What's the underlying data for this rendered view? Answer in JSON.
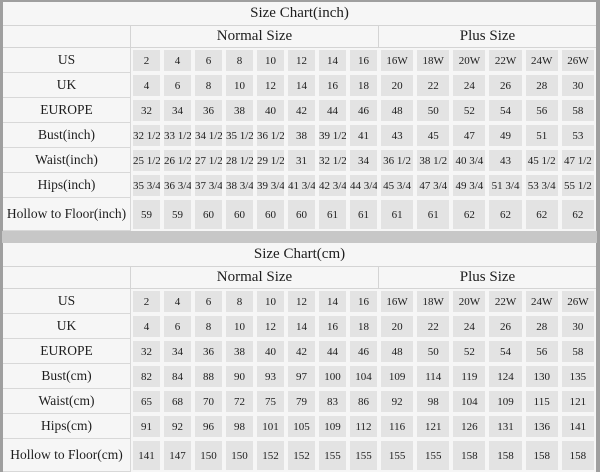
{
  "colors": {
    "page_bg": "#9f9f9f",
    "gap_bg": "#c7c7c7",
    "table_bg": "#f6f6f6",
    "cell_bg": "#e3e3e3",
    "text": "#1d1d1d"
  },
  "chart_data": [
    {
      "type": "table",
      "title": "Size Chart(inch)",
      "column_groups": [
        {
          "label": "Normal Size",
          "span": 8
        },
        {
          "label": "Plus Size",
          "span": 6
        }
      ],
      "rows": [
        {
          "label": "US",
          "normal": [
            "2",
            "4",
            "6",
            "8",
            "10",
            "12",
            "14",
            "16"
          ],
          "plus": [
            "16W",
            "18W",
            "20W",
            "22W",
            "24W",
            "26W"
          ]
        },
        {
          "label": "UK",
          "normal": [
            "4",
            "6",
            "8",
            "10",
            "12",
            "14",
            "16",
            "18"
          ],
          "plus": [
            "20",
            "22",
            "24",
            "26",
            "28",
            "30"
          ]
        },
        {
          "label": "EUROPE",
          "normal": [
            "32",
            "34",
            "36",
            "38",
            "40",
            "42",
            "44",
            "46"
          ],
          "plus": [
            "48",
            "50",
            "52",
            "54",
            "56",
            "58"
          ]
        },
        {
          "label": "Bust(inch)",
          "normal": [
            "32 1/2",
            "33 1/2",
            "34 1/2",
            "35 1/2",
            "36 1/2",
            "38",
            "39 1/2",
            "41"
          ],
          "plus": [
            "43",
            "45",
            "47",
            "49",
            "51",
            "53"
          ]
        },
        {
          "label": "Waist(inch)",
          "normal": [
            "25 1/2",
            "26 1/2",
            "27 1/2",
            "28 1/2",
            "29 1/2",
            "31",
            "32 1/2",
            "34"
          ],
          "plus": [
            "36 1/2",
            "38 1/2",
            "40 3/4",
            "43",
            "45 1/2",
            "47 1/2"
          ]
        },
        {
          "label": "Hips(inch)",
          "normal": [
            "35 3/4",
            "36 3/4",
            "37 3/4",
            "38 3/4",
            "39 3/4",
            "41 3/4",
            "42 3/4",
            "44 3/4"
          ],
          "plus": [
            "45 3/4",
            "47 3/4",
            "49 3/4",
            "51 3/4",
            "53 3/4",
            "55 1/2"
          ]
        },
        {
          "label": "Hollow to Floor(inch)",
          "normal": [
            "59",
            "59",
            "60",
            "60",
            "60",
            "60",
            "61",
            "61"
          ],
          "plus": [
            "61",
            "61",
            "62",
            "62",
            "62",
            "62"
          ]
        }
      ]
    },
    {
      "type": "table",
      "title": "Size Chart(cm)",
      "column_groups": [
        {
          "label": "Normal Size",
          "span": 8
        },
        {
          "label": "Plus Size",
          "span": 6
        }
      ],
      "rows": [
        {
          "label": "US",
          "normal": [
            "2",
            "4",
            "6",
            "8",
            "10",
            "12",
            "14",
            "16"
          ],
          "plus": [
            "16W",
            "18W",
            "20W",
            "22W",
            "24W",
            "26W"
          ]
        },
        {
          "label": "UK",
          "normal": [
            "4",
            "6",
            "8",
            "10",
            "12",
            "14",
            "16",
            "18"
          ],
          "plus": [
            "20",
            "22",
            "24",
            "26",
            "28",
            "30"
          ]
        },
        {
          "label": "EUROPE",
          "normal": [
            "32",
            "34",
            "36",
            "38",
            "40",
            "42",
            "44",
            "46"
          ],
          "plus": [
            "48",
            "50",
            "52",
            "54",
            "56",
            "58"
          ]
        },
        {
          "label": "Bust(cm)",
          "normal": [
            "82",
            "84",
            "88",
            "90",
            "93",
            "97",
            "100",
            "104"
          ],
          "plus": [
            "109",
            "114",
            "119",
            "124",
            "130",
            "135"
          ]
        },
        {
          "label": "Waist(cm)",
          "normal": [
            "65",
            "68",
            "70",
            "72",
            "75",
            "79",
            "83",
            "86"
          ],
          "plus": [
            "92",
            "98",
            "104",
            "109",
            "115",
            "121"
          ]
        },
        {
          "label": "Hips(cm)",
          "normal": [
            "91",
            "92",
            "96",
            "98",
            "101",
            "105",
            "109",
            "112"
          ],
          "plus": [
            "116",
            "121",
            "126",
            "131",
            "136",
            "141"
          ]
        },
        {
          "label": "Hollow to Floor(cm)",
          "normal": [
            "141",
            "147",
            "150",
            "150",
            "152",
            "152",
            "155",
            "155"
          ],
          "plus": [
            "155",
            "155",
            "158",
            "158",
            "158",
            "158"
          ]
        }
      ]
    }
  ]
}
